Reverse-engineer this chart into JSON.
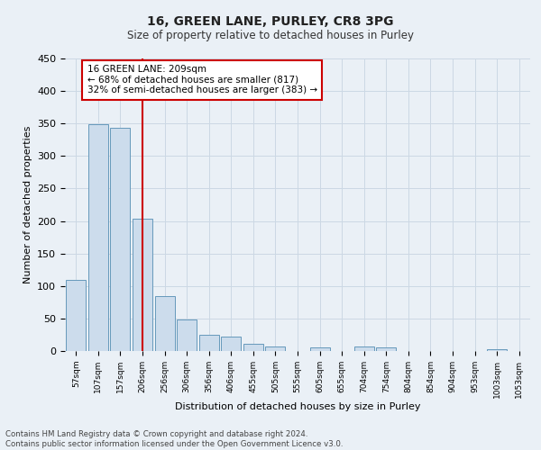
{
  "title1": "16, GREEN LANE, PURLEY, CR8 3PG",
  "title2": "Size of property relative to detached houses in Purley",
  "xlabel": "Distribution of detached houses by size in Purley",
  "ylabel": "Number of detached properties",
  "bin_labels": [
    "57sqm",
    "107sqm",
    "157sqm",
    "206sqm",
    "256sqm",
    "306sqm",
    "356sqm",
    "406sqm",
    "455sqm",
    "505sqm",
    "555sqm",
    "605sqm",
    "655sqm",
    "704sqm",
    "754sqm",
    "804sqm",
    "854sqm",
    "904sqm",
    "953sqm",
    "1003sqm",
    "1053sqm"
  ],
  "bar_values": [
    110,
    349,
    344,
    204,
    85,
    48,
    25,
    22,
    11,
    7,
    0,
    6,
    0,
    7,
    5,
    0,
    0,
    0,
    0,
    3,
    0
  ],
  "bar_color": "#ccdcec",
  "bar_edge_color": "#6699bb",
  "grid_color": "#ccd8e4",
  "bg_color": "#eaf0f6",
  "vline_color": "#cc0000",
  "annotation_text": "16 GREEN LANE: 209sqm\n← 68% of detached houses are smaller (817)\n32% of semi-detached houses are larger (383) →",
  "annotation_box_color": "#ffffff",
  "annotation_box_edge": "#cc0000",
  "footer1": "Contains HM Land Registry data © Crown copyright and database right 2024.",
  "footer2": "Contains public sector information licensed under the Open Government Licence v3.0.",
  "ylim": [
    0,
    450
  ],
  "yticks": [
    0,
    50,
    100,
    150,
    200,
    250,
    300,
    350,
    400,
    450
  ]
}
